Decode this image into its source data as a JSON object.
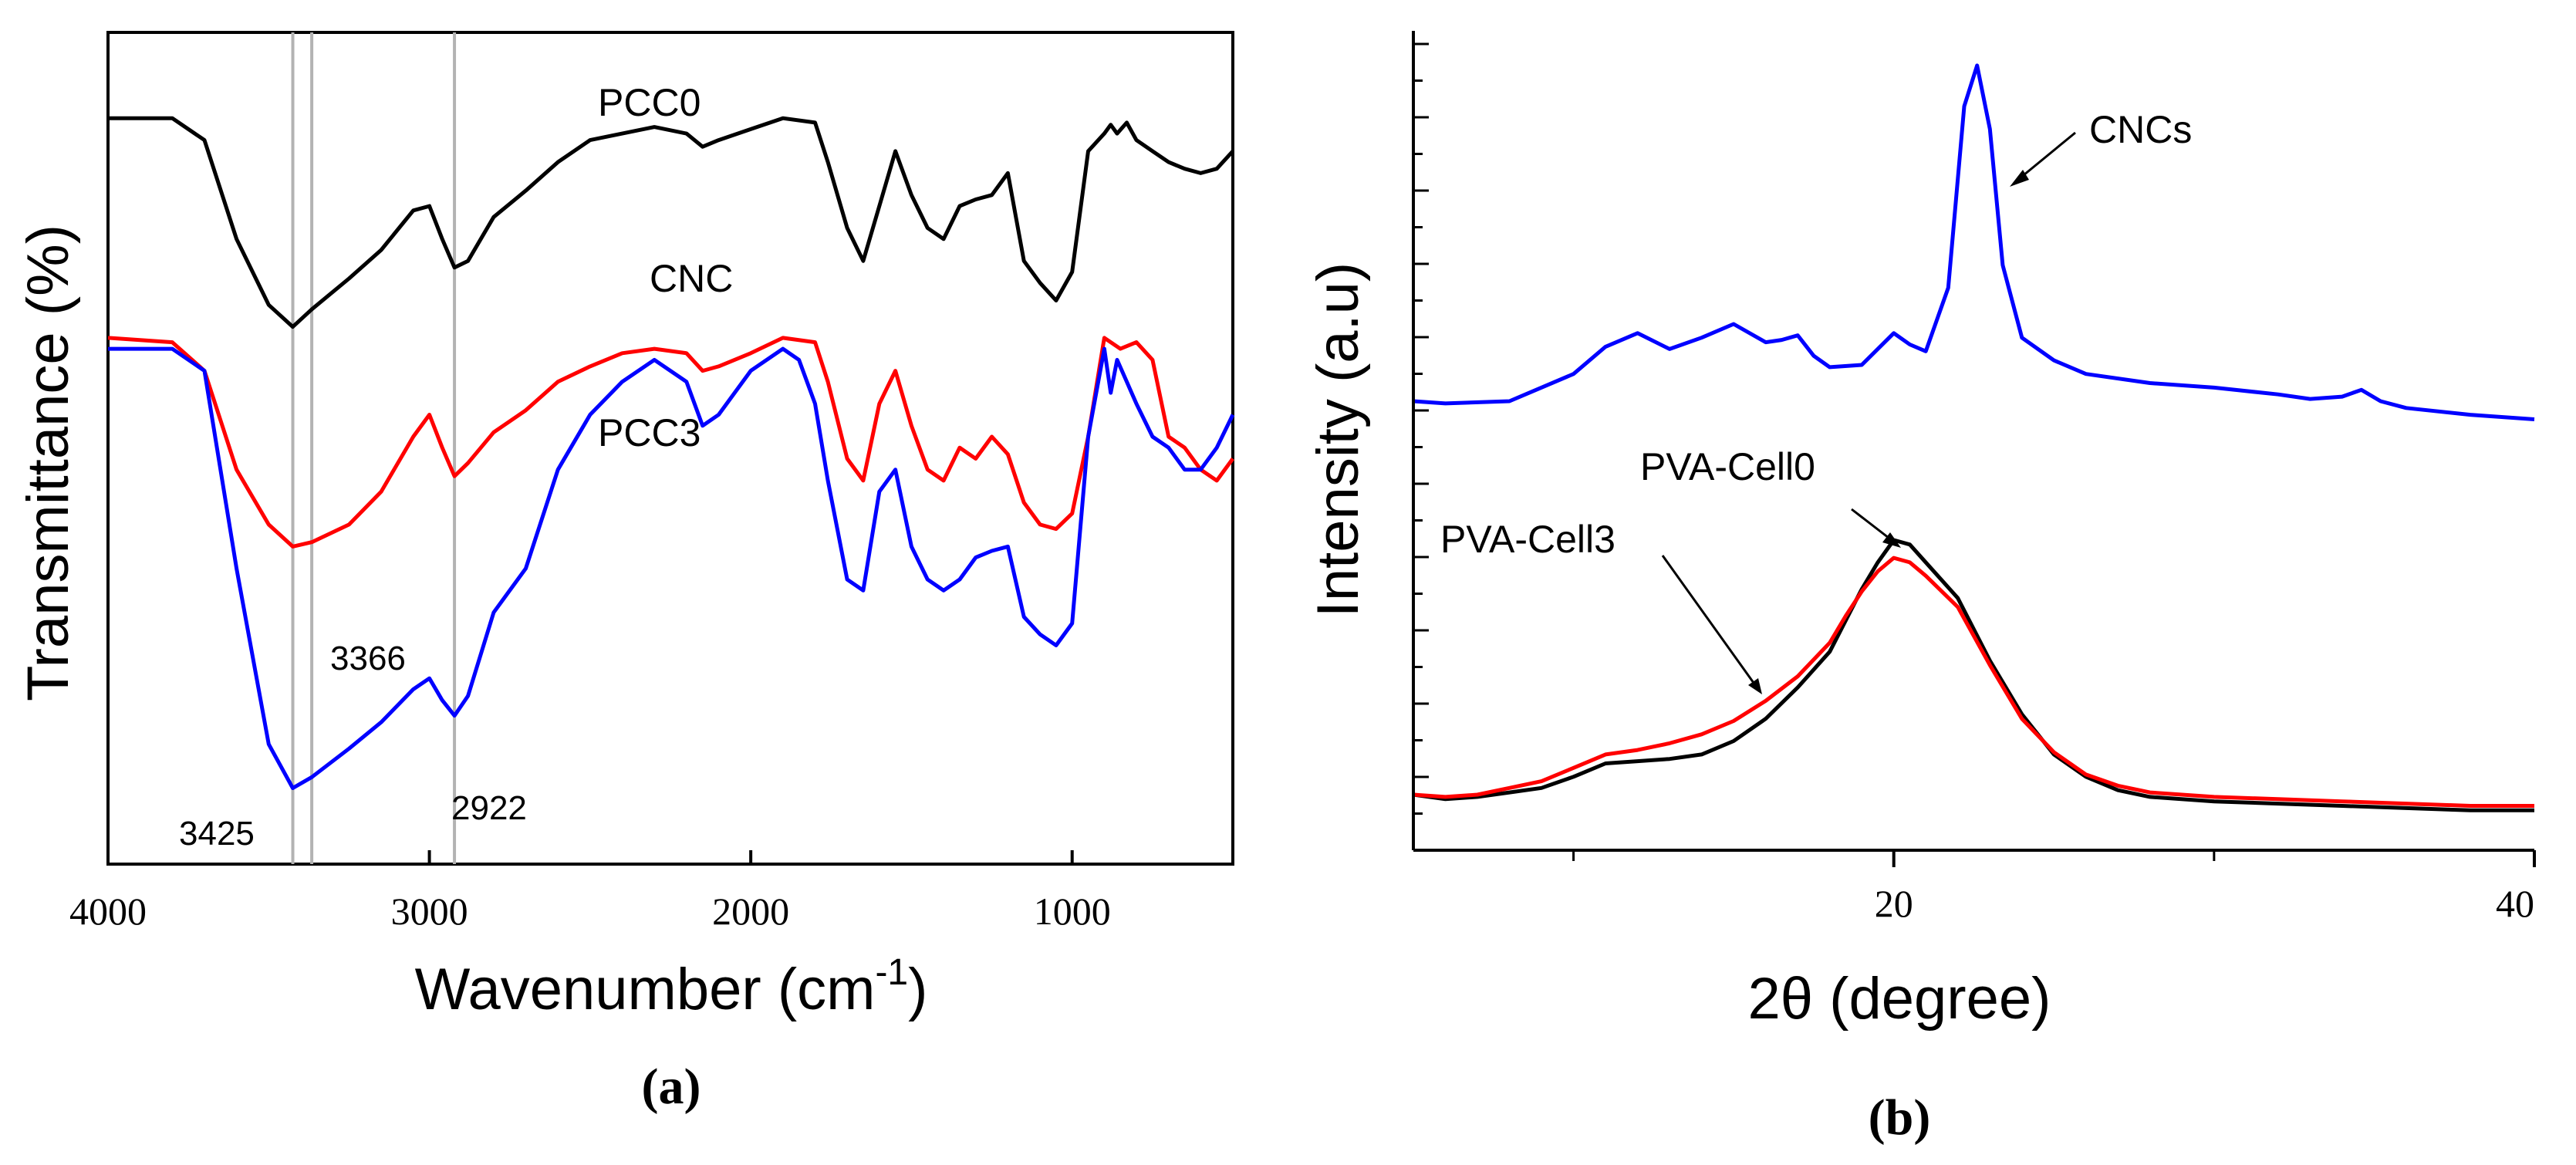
{
  "chart_data": [
    {
      "panel": "(a)",
      "type": "line",
      "xlabel": "Wavenumber (cm",
      "xlabel_sup": "-1",
      "xlabel_close": ")",
      "ylabel": "Transmittance (%)",
      "xlim": [
        4000,
        500
      ],
      "x_ticks": [
        4000,
        3000,
        2000,
        1000
      ],
      "y_ticks_shown": false,
      "reference_lines": [
        3425,
        3366,
        2922
      ],
      "annotations": [
        {
          "text": "3425",
          "x": 3425
        },
        {
          "text": "3366",
          "x": 3366
        },
        {
          "text": "2922",
          "x": 2922
        }
      ],
      "series": [
        {
          "name": "PCC0",
          "color": "#000000",
          "offset": 2.1,
          "x": [
            4000,
            3800,
            3700,
            3600,
            3500,
            3425,
            3366,
            3250,
            3150,
            3050,
            3000,
            2960,
            2922,
            2880,
            2800,
            2700,
            2600,
            2500,
            2400,
            2300,
            2200,
            2150,
            2100,
            2000,
            1900,
            1800,
            1760,
            1700,
            1650,
            1600,
            1550,
            1500,
            1450,
            1400,
            1350,
            1300,
            1250,
            1200,
            1150,
            1100,
            1050,
            1000,
            950,
            900,
            880,
            860,
            830,
            800,
            750,
            700,
            650,
            600,
            550,
            500
          ],
          "y": [
            0.95,
            0.95,
            0.85,
            0.4,
            0.1,
            0.0,
            0.08,
            0.22,
            0.35,
            0.53,
            0.55,
            0.4,
            0.27,
            0.3,
            0.5,
            0.62,
            0.75,
            0.85,
            0.88,
            0.91,
            0.88,
            0.82,
            0.85,
            0.9,
            0.95,
            0.93,
            0.75,
            0.45,
            0.3,
            0.55,
            0.8,
            0.6,
            0.45,
            0.4,
            0.55,
            0.58,
            0.6,
            0.7,
            0.3,
            0.2,
            0.12,
            0.25,
            0.8,
            0.88,
            0.92,
            0.88,
            0.93,
            0.85,
            0.8,
            0.75,
            0.72,
            0.7,
            0.72,
            0.8
          ]
        },
        {
          "name": "CNC",
          "color": "#ff0000",
          "offset": 1.1,
          "x": [
            4000,
            3800,
            3700,
            3600,
            3500,
            3425,
            3366,
            3250,
            3150,
            3050,
            3000,
            2960,
            2922,
            2880,
            2800,
            2700,
            2600,
            2500,
            2400,
            2300,
            2200,
            2150,
            2100,
            2000,
            1900,
            1800,
            1760,
            1700,
            1650,
            1600,
            1550,
            1500,
            1450,
            1400,
            1350,
            1300,
            1250,
            1200,
            1150,
            1100,
            1050,
            1000,
            950,
            900,
            850,
            800,
            750,
            700,
            650,
            600,
            550,
            500
          ],
          "y": [
            0.95,
            0.93,
            0.8,
            0.35,
            0.1,
            0.0,
            0.02,
            0.1,
            0.25,
            0.5,
            0.6,
            0.45,
            0.32,
            0.38,
            0.52,
            0.62,
            0.75,
            0.82,
            0.88,
            0.9,
            0.88,
            0.8,
            0.82,
            0.88,
            0.95,
            0.93,
            0.75,
            0.4,
            0.3,
            0.65,
            0.8,
            0.55,
            0.35,
            0.3,
            0.45,
            0.4,
            0.5,
            0.42,
            0.2,
            0.1,
            0.08,
            0.15,
            0.5,
            0.95,
            0.9,
            0.93,
            0.85,
            0.5,
            0.45,
            0.35,
            0.3,
            0.4
          ]
        },
        {
          "name": "PCC3",
          "color": "#0000ff",
          "offset": 0.0,
          "x": [
            4000,
            3800,
            3700,
            3600,
            3500,
            3425,
            3366,
            3250,
            3150,
            3050,
            3000,
            2960,
            2922,
            2880,
            2800,
            2700,
            2600,
            2500,
            2400,
            2300,
            2200,
            2150,
            2100,
            2000,
            1900,
            1850,
            1800,
            1760,
            1700,
            1650,
            1600,
            1550,
            1500,
            1450,
            1400,
            1350,
            1300,
            1250,
            1200,
            1150,
            1100,
            1050,
            1000,
            950,
            900,
            880,
            860,
            830,
            800,
            750,
            700,
            650,
            600,
            550,
            500
          ],
          "y": [
            2.0,
            2.0,
            1.9,
            1.0,
            0.2,
            0.0,
            0.05,
            0.18,
            0.3,
            0.45,
            0.5,
            0.4,
            0.33,
            0.42,
            0.8,
            1.0,
            1.45,
            1.7,
            1.85,
            1.95,
            1.85,
            1.65,
            1.7,
            1.9,
            2.0,
            1.95,
            1.75,
            1.4,
            0.95,
            0.9,
            1.35,
            1.45,
            1.1,
            0.95,
            0.9,
            0.95,
            1.05,
            1.08,
            1.1,
            0.78,
            0.7,
            0.65,
            0.75,
            1.6,
            2.0,
            1.8,
            1.95,
            1.85,
            1.75,
            1.6,
            1.55,
            1.45,
            1.45,
            1.55,
            1.7
          ]
        }
      ]
    },
    {
      "panel": "(b)",
      "type": "line",
      "xlabel": "2θ (degree)",
      "ylabel": "Intensity (a.u)",
      "xlim": [
        5,
        40
      ],
      "x_ticks": [
        20,
        40
      ],
      "x_minor_ticks": [
        10,
        30
      ],
      "y_ticks_shown": false,
      "annotations": [
        {
          "text": "CNCs",
          "target_series": "CNCs",
          "target_x": 22.6
        },
        {
          "text": "PVA-Cell0",
          "target_series": "PVA-Cell0",
          "target_x": 20.0
        },
        {
          "text": "PVA-Cell3",
          "target_series": "PVA-Cell3",
          "target_x": 16.8
        }
      ],
      "series": [
        {
          "name": "CNCs",
          "color": "#0000ff",
          "x": [
            5,
            6,
            8,
            10,
            11,
            12,
            13,
            14,
            15,
            16,
            16.5,
            17,
            17.5,
            18,
            19,
            20,
            20.5,
            21,
            21.7,
            22.2,
            22.6,
            23,
            23.4,
            24,
            25,
            26,
            28,
            30,
            32,
            33,
            34,
            34.6,
            35.2,
            36,
            38,
            40
          ],
          "y": [
            0.5,
            0.45,
            0.5,
            1.1,
            1.7,
            2.0,
            1.65,
            1.9,
            2.2,
            1.8,
            1.85,
            1.95,
            1.5,
            1.25,
            1.3,
            2.0,
            1.75,
            1.6,
            3.0,
            7.0,
            7.9,
            6.5,
            3.5,
            1.9,
            1.4,
            1.1,
            0.9,
            0.8,
            0.65,
            0.55,
            0.6,
            0.75,
            0.5,
            0.35,
            0.2,
            0.1
          ]
        },
        {
          "name": "PVA-Cell0",
          "color": "#000000",
          "x": [
            5,
            6,
            7,
            8,
            9,
            10,
            11,
            12,
            13,
            14,
            15,
            16,
            17,
            18,
            18.5,
            19,
            19.5,
            20,
            20.5,
            21,
            22,
            23,
            24,
            25,
            26,
            27,
            28,
            30,
            32,
            34,
            36,
            38,
            40
          ],
          "y": [
            0.4,
            0.3,
            0.35,
            0.45,
            0.55,
            0.8,
            1.1,
            1.15,
            1.2,
            1.3,
            1.6,
            2.1,
            2.8,
            3.6,
            4.3,
            5.0,
            5.6,
            6.1,
            6.0,
            5.6,
            4.8,
            3.4,
            2.2,
            1.3,
            0.8,
            0.5,
            0.35,
            0.25,
            0.2,
            0.15,
            0.1,
            0.05,
            0.05
          ]
        },
        {
          "name": "PVA-Cell3",
          "color": "#ff0000",
          "x": [
            5,
            6,
            7,
            8,
            9,
            10,
            11,
            12,
            13,
            14,
            15,
            16,
            17,
            18,
            18.5,
            19,
            19.5,
            20,
            20.5,
            21,
            22,
            23,
            24,
            25,
            26,
            27,
            28,
            30,
            32,
            34,
            36,
            38,
            40
          ],
          "y": [
            0.4,
            0.35,
            0.4,
            0.55,
            0.7,
            1.0,
            1.3,
            1.4,
            1.55,
            1.75,
            2.05,
            2.5,
            3.05,
            3.8,
            4.4,
            4.95,
            5.4,
            5.7,
            5.6,
            5.3,
            4.6,
            3.3,
            2.1,
            1.35,
            0.85,
            0.6,
            0.45,
            0.35,
            0.3,
            0.25,
            0.2,
            0.15,
            0.15
          ]
        }
      ]
    }
  ],
  "captions": {
    "a": "(a)",
    "b": "(b)"
  }
}
